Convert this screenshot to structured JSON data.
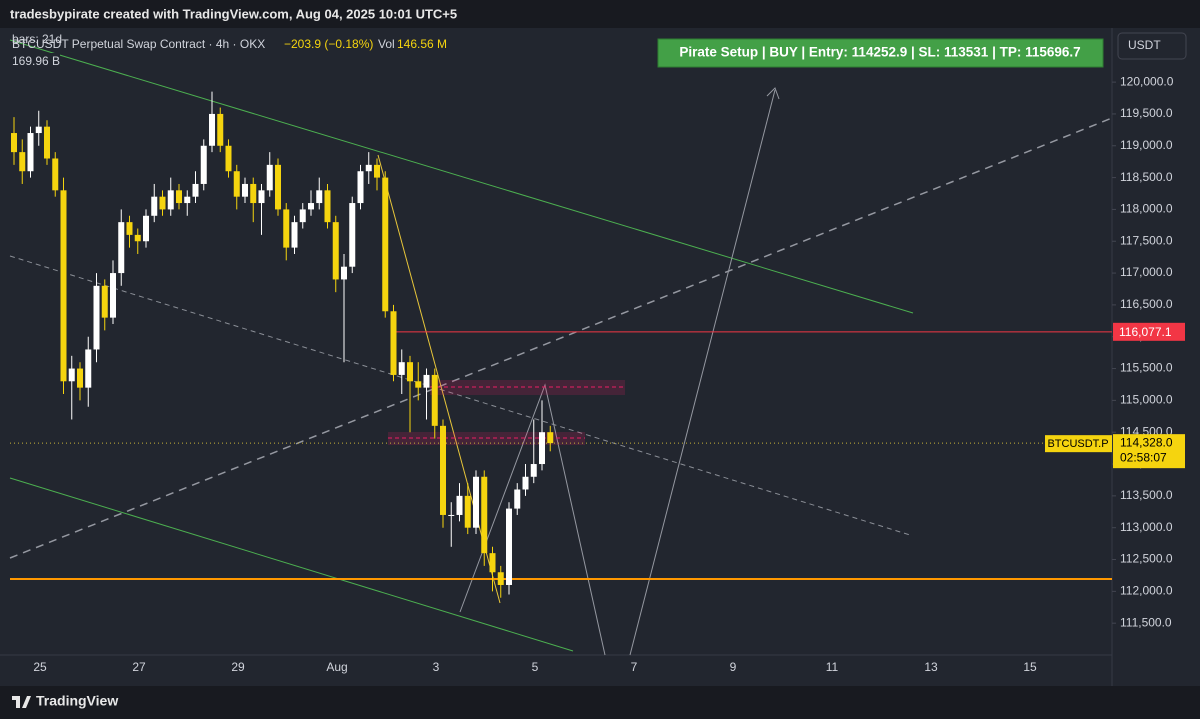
{
  "header": {
    "author": "tradesbypirate created with TradingView.com, Aug 04, 2025 10:01 UTC+5"
  },
  "chart_data": {
    "type": "candlestick",
    "symbol_line": "BTCUSDT Perpetual Swap Contract · 4h · OKX",
    "change": "−203.9 (−0.18%)",
    "volume_label": "Vol",
    "volume": "146.56 M",
    "bars_label": "bars: 21d",
    "bars_value": "169.96 B",
    "setup_note": "Pirate Setup | BUY | Entry: 114252.9 | SL: 113531 | TP: 115696.7",
    "currency": "USDT",
    "x_labels": [
      "25",
      "27",
      "29",
      "Aug",
      "3",
      "5",
      "7",
      "9",
      "11",
      "13",
      "15"
    ],
    "open": [
      119200,
      118900,
      118600,
      119200,
      119300,
      118800,
      118300,
      115300,
      115500,
      115200,
      115800,
      116800,
      116300,
      117000,
      117800,
      117600,
      117500,
      117900,
      118200,
      118000,
      118300,
      118100,
      118200,
      118400,
      119000,
      119500,
      119000,
      118600,
      118200,
      118400,
      118100,
      118300,
      118700,
      118000,
      117400,
      117800,
      118000,
      118100,
      118300,
      117800,
      116900,
      117100,
      118100,
      118600,
      118700,
      118500,
      116400,
      115400,
      115600,
      115300,
      115200,
      115400,
      114600,
      113200,
      113200,
      113500,
      113000,
      113800,
      112600,
      112300,
      112100,
      113300,
      113600,
      113800,
      114000,
      114500
    ],
    "high": [
      119450,
      119100,
      119300,
      119550,
      119400,
      118900,
      118500,
      115700,
      115600,
      116000,
      117000,
      116900,
      117200,
      118000,
      117900,
      117700,
      118000,
      118400,
      118300,
      118500,
      118400,
      118300,
      118600,
      119100,
      119850,
      119600,
      119100,
      118700,
      118500,
      118500,
      118400,
      118900,
      118800,
      118100,
      117900,
      118100,
      118300,
      118500,
      118400,
      117900,
      117300,
      118200,
      118700,
      118900,
      118800,
      118600,
      116500,
      115800,
      115700,
      115600,
      115500,
      115500,
      114700,
      113400,
      113700,
      113700,
      113900,
      113900,
      112700,
      112400,
      113400,
      113700,
      114000,
      114700,
      115000,
      114600
    ],
    "low": [
      118700,
      118400,
      118500,
      119000,
      118700,
      118200,
      115100,
      114700,
      115000,
      114900,
      115600,
      116100,
      116200,
      116800,
      117400,
      117300,
      117400,
      117800,
      117900,
      117900,
      118000,
      117900,
      118100,
      118300,
      118900,
      118900,
      118500,
      118000,
      118100,
      117800,
      117600,
      118200,
      117900,
      117200,
      117300,
      117700,
      117900,
      118000,
      117700,
      116700,
      115600,
      117000,
      118000,
      118400,
      118300,
      116300,
      115300,
      115100,
      114500,
      115000,
      114700,
      114400,
      113000,
      112700,
      113100,
      112900,
      112900,
      112400,
      112000,
      111900,
      111950,
      113200,
      113500,
      113700,
      113900,
      114200
    ],
    "close": [
      118900,
      118600,
      119200,
      119300,
      118800,
      118300,
      115300,
      115500,
      115200,
      115800,
      116800,
      116300,
      117000,
      117800,
      117600,
      117500,
      117900,
      118200,
      118000,
      118300,
      118100,
      118200,
      118400,
      119000,
      119500,
      119000,
      118600,
      118200,
      118400,
      118100,
      118300,
      118700,
      118000,
      117400,
      117800,
      118000,
      118100,
      118300,
      117800,
      116900,
      117100,
      118100,
      118600,
      118700,
      118500,
      116400,
      115400,
      115600,
      115300,
      115200,
      115400,
      114600,
      113200,
      113200,
      113500,
      113000,
      113800,
      112600,
      112300,
      112100,
      113300,
      113600,
      113800,
      114000,
      114500,
      114328
    ],
    "up_color": "#ffffff",
    "down_color": "#f5d40f",
    "ylim": [
      111000,
      120850
    ],
    "yticks": [
      {
        "value": 111500,
        "label": "111,500.0"
      },
      {
        "value": 112000,
        "label": "112,000.0"
      },
      {
        "value": 112500,
        "label": "112,500.0"
      },
      {
        "value": 113000,
        "label": "113,000.0"
      },
      {
        "value": 113500,
        "label": "113,500.0"
      },
      {
        "value": 114000,
        "label": "114,000.0"
      },
      {
        "value": 114500,
        "label": "114,500.0"
      },
      {
        "value": 115000,
        "label": "115,000.0"
      },
      {
        "value": 115500,
        "label": "115,500.0"
      },
      {
        "value": 116000,
        "label": "116,000.0"
      },
      {
        "value": 116500,
        "label": "116,500.0"
      },
      {
        "value": 117000,
        "label": "117,000.0"
      },
      {
        "value": 117500,
        "label": "117,500.0"
      },
      {
        "value": 118000,
        "label": "118,000.0"
      },
      {
        "value": 118500,
        "label": "118,500.0"
      },
      {
        "value": 119000,
        "label": "119,000.0"
      },
      {
        "value": 119500,
        "label": "119,500.0"
      },
      {
        "value": 120000,
        "label": "120,000.0"
      }
    ],
    "level": {
      "value": 116077.1,
      "label": "116,077.1"
    },
    "last_price": {
      "value": 114328,
      "label": "114,328.0"
    },
    "last_symbol": "BTCUSDT.P",
    "countdown": "02:58:07"
  },
  "footer": {
    "brand": "TradingView"
  }
}
